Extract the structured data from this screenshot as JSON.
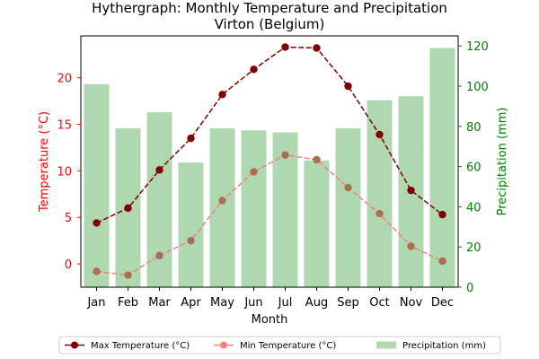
{
  "chart_data": {
    "type": "bar+line",
    "title": [
      "Hythergraph: Monthly Temperature and Precipitation",
      "Virton (Belgium)"
    ],
    "xlabel": "Month",
    "ylabel_left": "Temperature (°C)",
    "ylabel_right": "Precipitation (mm)",
    "categories": [
      "Jan",
      "Feb",
      "Mar",
      "Apr",
      "May",
      "Jun",
      "Jul",
      "Aug",
      "Sep",
      "Oct",
      "Nov",
      "Dec"
    ],
    "ylim_left": [
      -2.5,
      24.5
    ],
    "yticks_left": [
      0,
      5,
      10,
      15,
      20
    ],
    "ylim_right": [
      0,
      125
    ],
    "yticks_right": [
      0,
      20,
      40,
      60,
      80,
      100,
      120
    ],
    "grid": false,
    "legend_position": "bottom, below plot",
    "series": [
      {
        "name": "Max Temperature (°C)",
        "axis": "left",
        "kind": "line",
        "color": "#800000",
        "linestyle": "dashed",
        "values": [
          4.4,
          6.0,
          10.1,
          13.5,
          18.2,
          20.9,
          23.3,
          23.2,
          19.1,
          13.9,
          7.9,
          5.3
        ]
      },
      {
        "name": "Min Temperature (°C)",
        "axis": "left",
        "kind": "line",
        "color": "#f08080",
        "linestyle": "dashed",
        "values": [
          -0.8,
          -1.2,
          0.9,
          2.5,
          6.8,
          9.9,
          11.7,
          11.2,
          8.2,
          5.4,
          1.9,
          0.3
        ]
      },
      {
        "name": "Precipitation (mm)",
        "axis": "right",
        "kind": "bar",
        "color": "#b0d8b0",
        "values": [
          101,
          79,
          87,
          62,
          79,
          78,
          77,
          63,
          79,
          93,
          95,
          119
        ]
      }
    ]
  },
  "colors": {
    "left_axis": "#ff0000",
    "right_axis": "#008000",
    "max_point": "#800000",
    "min_point": "#a87050"
  }
}
